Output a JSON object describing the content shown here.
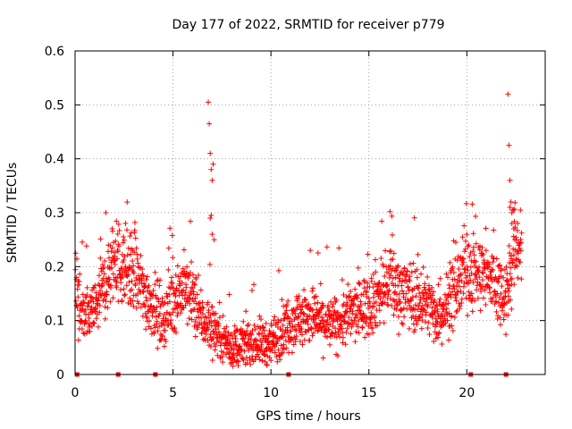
{
  "chart_data": {
    "type": "scatter",
    "title": "Day 177 of 2022, SRMTID for receiver p779",
    "xlabel": "GPS time / hours",
    "ylabel": "SRMTID / TECUs",
    "xlim": [
      0,
      24
    ],
    "ylim": [
      0,
      0.6
    ],
    "grid": true,
    "marker": "+",
    "color": "#ff0000",
    "xticks": [
      "0",
      "5",
      "10",
      "15",
      "20"
    ],
    "yticks": [
      "0",
      "0.1",
      "0.2",
      "0.3",
      "0.4",
      "0.5",
      "0.6"
    ],
    "xtick_values": [
      0,
      5,
      10,
      15,
      20
    ],
    "ytick_values": [
      0,
      0.1,
      0.2,
      0.3,
      0.4,
      0.5,
      0.6
    ],
    "trend": {
      "x": [
        0,
        0.5,
        1,
        2,
        3,
        3.5,
        4,
        4.5,
        5,
        5.5,
        6,
        6.5,
        7,
        7.5,
        8,
        9,
        10,
        11,
        12,
        13,
        14,
        15,
        16,
        17,
        18,
        18.5,
        19,
        19.5,
        20,
        21,
        22,
        22.5
      ],
      "y": [
        0.17,
        0.1,
        0.12,
        0.21,
        0.19,
        0.15,
        0.13,
        0.1,
        0.14,
        0.16,
        0.14,
        0.1,
        0.09,
        0.07,
        0.05,
        0.06,
        0.06,
        0.1,
        0.11,
        0.09,
        0.11,
        0.13,
        0.17,
        0.15,
        0.13,
        0.11,
        0.13,
        0.16,
        0.2,
        0.18,
        0.15,
        0.24
      ]
    },
    "spikes": [
      {
        "x": [
          6.8,
          6.85,
          6.9,
          6.95,
          7.0,
          7.05
        ],
        "y": [
          0.505,
          0.465,
          0.41,
          0.38,
          0.36,
          0.39
        ]
      },
      {
        "x": [
          22.1,
          22.15,
          22.2,
          22.25,
          22.3
        ],
        "y": [
          0.52,
          0.425,
          0.36,
          0.32,
          0.3
        ]
      }
    ],
    "zero_markers_x": [
      0.1,
      2.2,
      4.1,
      10.9,
      20.2,
      22.0
    ]
  }
}
